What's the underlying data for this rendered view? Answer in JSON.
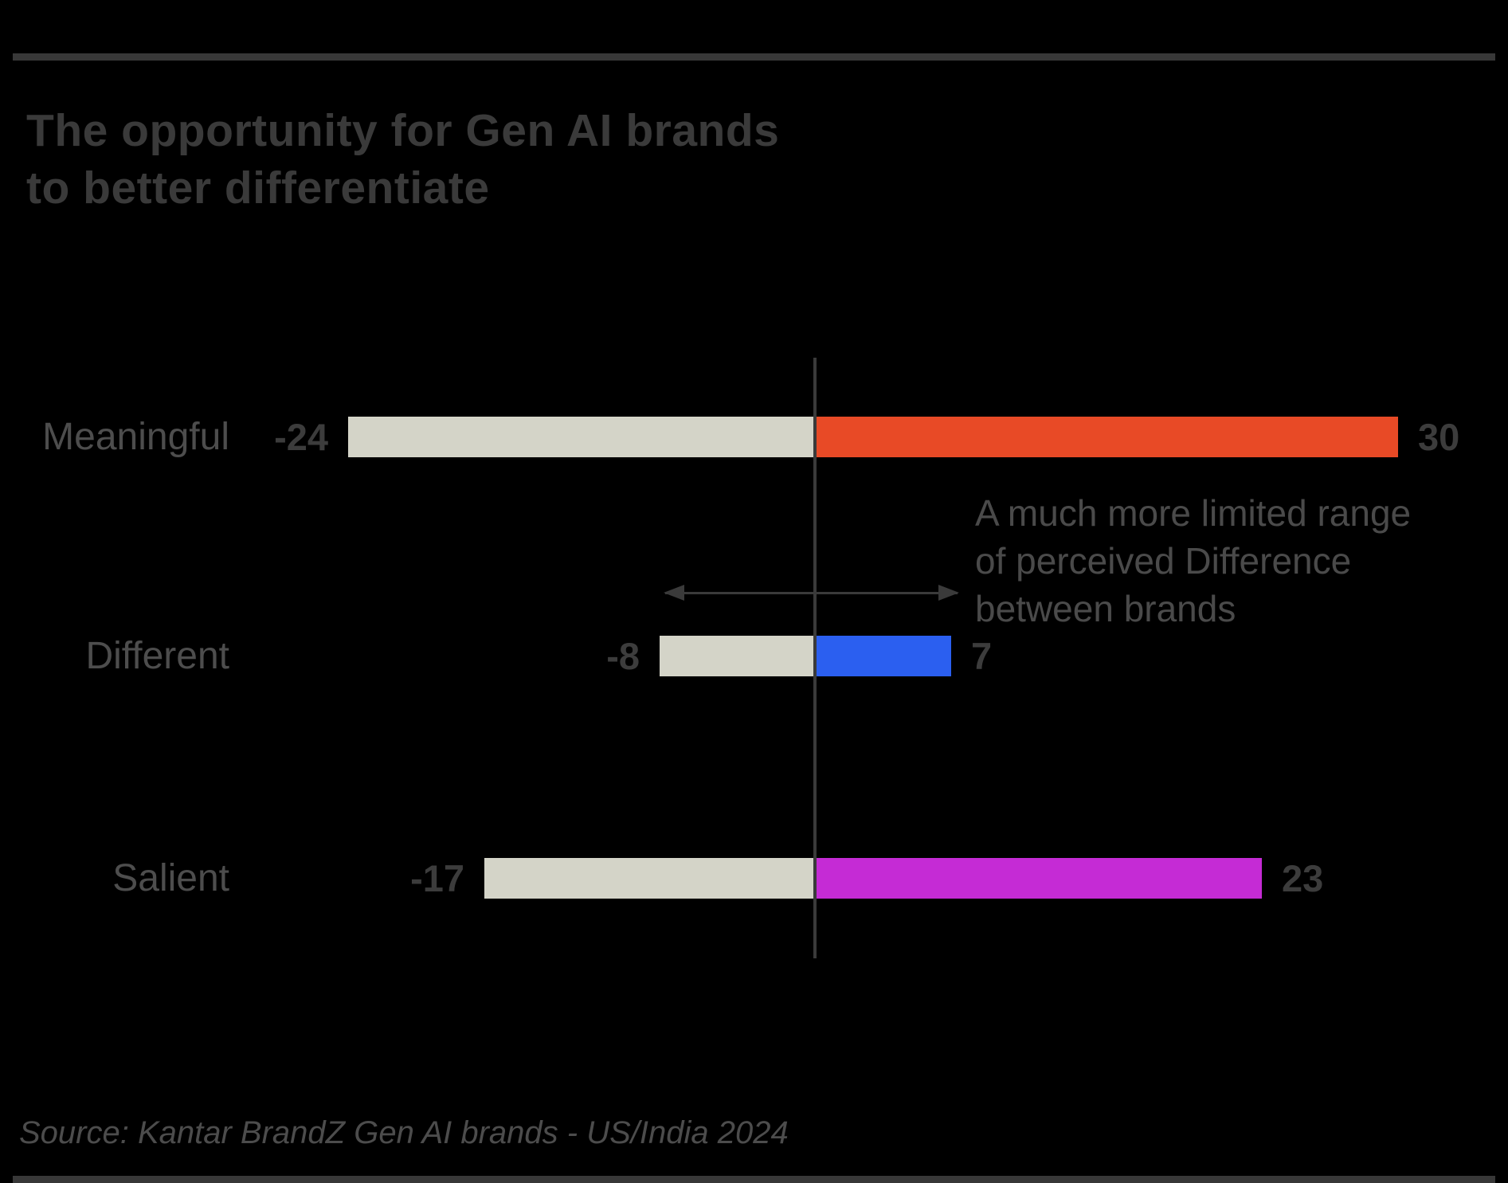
{
  "header": {
    "title_line1": "The opportunity for Gen AI brands",
    "title_line2": "to better differentiate"
  },
  "chart_data": {
    "type": "bar",
    "subtype": "diverging-horizontal",
    "title": "The opportunity for Gen AI brands to better differentiate",
    "categories": [
      "Meaningful",
      "Different",
      "Salient"
    ],
    "series": [
      {
        "name": "negative-range",
        "values": [
          -24,
          -8,
          -17
        ]
      },
      {
        "name": "positive-range",
        "values": [
          30,
          7,
          23
        ]
      }
    ],
    "zero_axis": true,
    "grid": false,
    "legend": false,
    "annotation": "A much more limited range of perceived Difference between brands",
    "negative_bar_color": "#d4d4c8",
    "positive_bar_colors": [
      "#e84a26",
      "#2b5ff0",
      "#c52bd5"
    ],
    "source": "Source: Kantar BrandZ Gen AI brands - US/India 2024"
  },
  "rows": [
    {
      "label": "Meaningful",
      "neg": 24,
      "pos": 30,
      "neg_label": "-24",
      "pos_label": "30",
      "pos_color": "#e84a26"
    },
    {
      "label": "Different",
      "neg": 8,
      "pos": 7,
      "neg_label": "-8",
      "pos_label": "7",
      "pos_color": "#2b5ff0"
    },
    {
      "label": "Salient",
      "neg": 17,
      "pos": 23,
      "neg_label": "-17",
      "pos_label": "23",
      "pos_color": "#c52bd5"
    }
  ],
  "annotation": {
    "line1": "A much more limited range",
    "line2": "of perceived Difference",
    "line3": "between brands"
  },
  "source": {
    "text": "Source: Kantar BrandZ Gen AI brands - US/India 2024"
  },
  "colors": {
    "background": "#000000",
    "rule": "#383838",
    "title": "#3a3a3a",
    "category_label": "#4d4d4d",
    "value_label": "#3c3c3c",
    "negative_bar": "#d4d4c8",
    "meaningful_bar": "#e84a26",
    "different_bar": "#2b5ff0",
    "salient_bar": "#c52bd5",
    "axis": "#3a3a3a",
    "annotation_text": "#4a4a4a",
    "source_text": "#4c4c4c"
  }
}
